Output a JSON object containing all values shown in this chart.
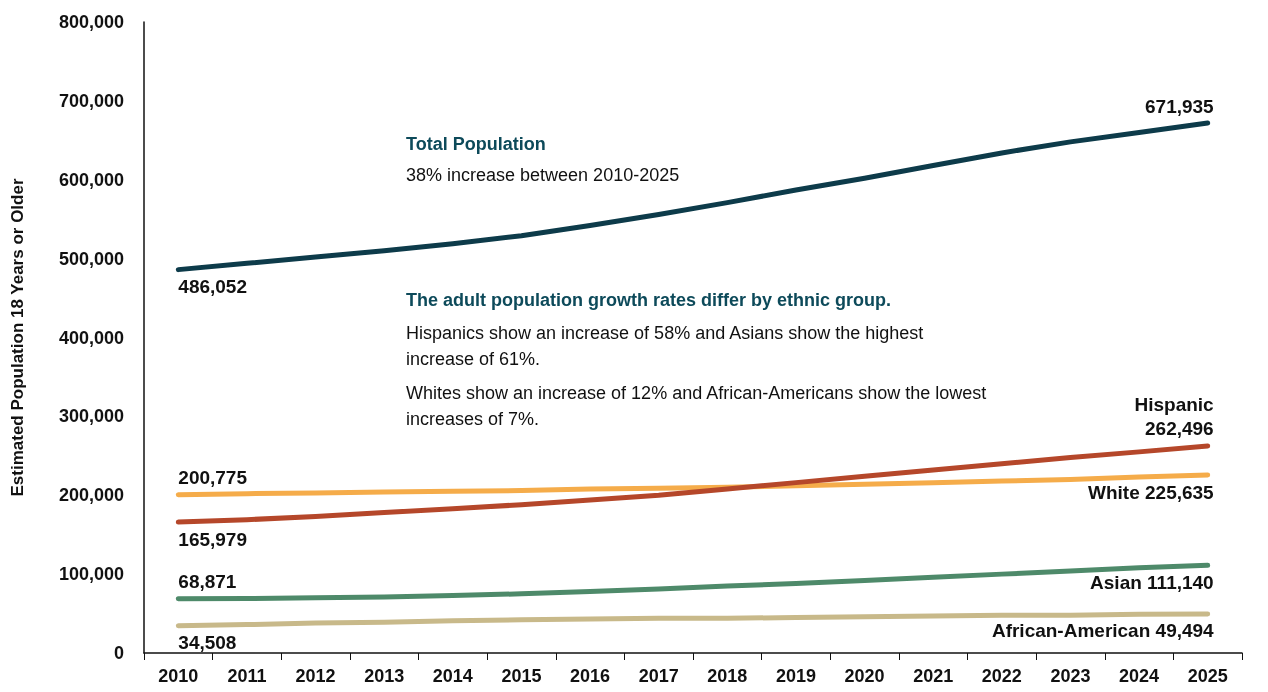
{
  "chart_data": {
    "type": "line",
    "ylabel": "Estimated Population 18 Years or Older",
    "categories": [
      "2010",
      "2011",
      "2012",
      "2013",
      "2014",
      "2015",
      "2016",
      "2017",
      "2018",
      "2019",
      "2020",
      "2021",
      "2022",
      "2023",
      "2024",
      "2025"
    ],
    "ylim": [
      0,
      800000
    ],
    "yticks": [
      0,
      {
        "value": 100000,
        "label": "100,000"
      },
      {
        "value": 200000,
        "label": "200,000"
      },
      {
        "value": 300000,
        "label": "300,000"
      },
      {
        "value": 400000,
        "label": "400,000"
      },
      {
        "value": 500000,
        "label": "500,000"
      },
      {
        "value": 600000,
        "label": "600,000"
      },
      {
        "value": 700000,
        "label": "700,000"
      },
      {
        "value": 800000,
        "label": "800,000"
      }
    ],
    "grid": false,
    "legend": false,
    "marker": "none",
    "line_style": "solid",
    "annotations": [
      "Total Population",
      "38% increase between 2010-2025",
      "The adult population growth rates differ by ethnic group.",
      "Hispanics show an increase of 58% and Asians show the highest increase of 61%.",
      "Whites show an increase of 12% and African-Americans show the lowest increases of 7%."
    ],
    "series": [
      {
        "color": "#0d3b4a",
        "values": [
          486052,
          494000,
          502000,
          510000,
          519000,
          529000,
          542000,
          556000,
          571000,
          587000,
          602000,
          618000,
          634000,
          648000,
          660000,
          671935
        ],
        "value_labels": [
          "486,052",
          null,
          null,
          null,
          null,
          null,
          null,
          null,
          null,
          null,
          null,
          null,
          null,
          null,
          null,
          "671,935"
        ]
      },
      {
        "name": "Hispanic",
        "color": "#b5472a",
        "values": [
          165979,
          169000,
          173000,
          178000,
          183000,
          188000,
          194000,
          200000,
          208000,
          216000,
          224000,
          232000,
          240000,
          248000,
          255000,
          262496
        ],
        "value_labels": [
          "165,979",
          null,
          null,
          null,
          null,
          null,
          null,
          null,
          null,
          null,
          null,
          null,
          null,
          null,
          null,
          "262,496"
        ]
      },
      {
        "name": "White",
        "color": "#f5ac4a",
        "values": [
          200775,
          202000,
          203000,
          204000,
          205000,
          206000,
          208000,
          209000,
          210000,
          212000,
          214000,
          216000,
          218000,
          220000,
          223000,
          225635
        ],
        "value_labels": [
          "200,775",
          null,
          null,
          null,
          null,
          null,
          null,
          null,
          null,
          null,
          null,
          null,
          null,
          null,
          null,
          "225,635"
        ]
      },
      {
        "name": "Asian",
        "color": "#4e8a6a",
        "values": [
          68871,
          69000,
          70000,
          71000,
          73000,
          75000,
          78000,
          81000,
          85000,
          88000,
          92000,
          96000,
          100000,
          104000,
          108000,
          111140
        ],
        "value_labels": [
          "68,871",
          null,
          null,
          null,
          null,
          null,
          null,
          null,
          null,
          null,
          null,
          null,
          null,
          null,
          null,
          "111,140"
        ]
      },
      {
        "name": "African-American",
        "color": "#c8b98a",
        "values": [
          34508,
          36000,
          38000,
          39000,
          41000,
          42000,
          43000,
          44000,
          44000,
          45000,
          46000,
          47000,
          48000,
          48000,
          49000,
          49494
        ],
        "value_labels": [
          "34,508",
          null,
          null,
          null,
          null,
          null,
          null,
          null,
          null,
          null,
          null,
          null,
          null,
          null,
          null,
          "49,494"
        ]
      }
    ]
  }
}
